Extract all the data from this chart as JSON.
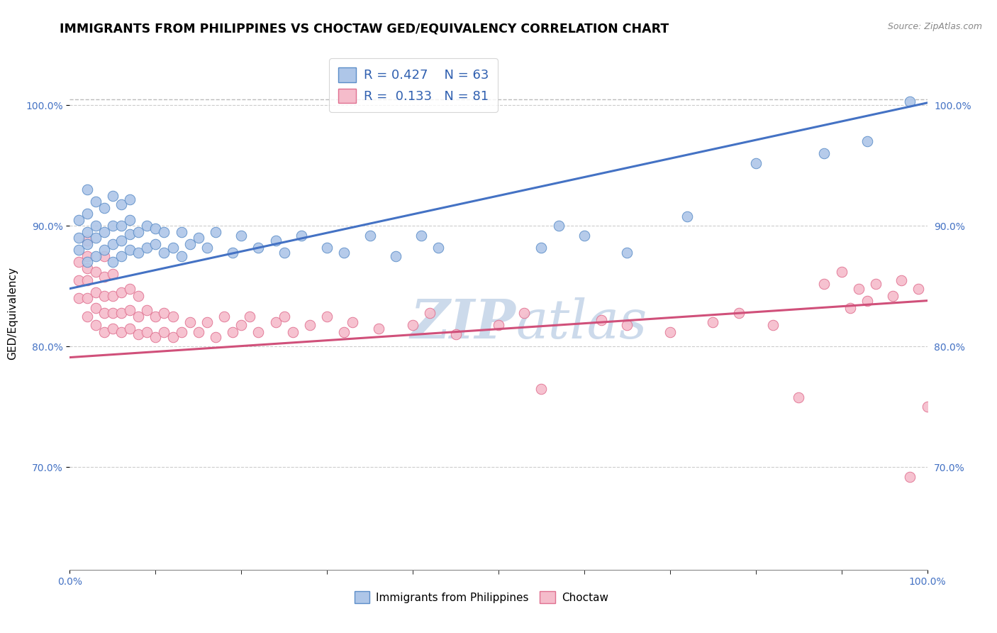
{
  "title": "IMMIGRANTS FROM PHILIPPINES VS CHOCTAW GED/EQUIVALENCY CORRELATION CHART",
  "source_text": "Source: ZipAtlas.com",
  "ylabel": "GED/Equivalency",
  "xlim": [
    0.0,
    1.0
  ],
  "ylim": [
    0.615,
    1.04
  ],
  "y_tick_positions": [
    0.7,
    0.8,
    0.9,
    1.0
  ],
  "blue_R": 0.427,
  "blue_N": 63,
  "pink_R": 0.133,
  "pink_N": 81,
  "blue_color": "#aec6e8",
  "pink_color": "#f5bccb",
  "blue_edge_color": "#5b8dc8",
  "pink_edge_color": "#e07090",
  "blue_line_color": "#4472c4",
  "pink_line_color": "#d0507a",
  "watermark_color": "#ccdaeb",
  "dashed_line_y": 1.005,
  "blue_line_y_start": 0.848,
  "blue_line_y_end": 1.002,
  "pink_line_y_start": 0.791,
  "pink_line_y_end": 0.838,
  "title_fontsize": 12.5,
  "axis_label_fontsize": 11,
  "tick_fontsize": 10,
  "legend_fontsize": 13,
  "blue_scatter_x": [
    0.01,
    0.01,
    0.01,
    0.02,
    0.02,
    0.02,
    0.02,
    0.02,
    0.03,
    0.03,
    0.03,
    0.03,
    0.04,
    0.04,
    0.04,
    0.05,
    0.05,
    0.05,
    0.05,
    0.06,
    0.06,
    0.06,
    0.06,
    0.07,
    0.07,
    0.07,
    0.07,
    0.08,
    0.08,
    0.09,
    0.09,
    0.1,
    0.1,
    0.11,
    0.11,
    0.12,
    0.13,
    0.13,
    0.14,
    0.15,
    0.16,
    0.17,
    0.19,
    0.2,
    0.22,
    0.24,
    0.25,
    0.27,
    0.3,
    0.32,
    0.35,
    0.38,
    0.41,
    0.43,
    0.55,
    0.57,
    0.6,
    0.65,
    0.72,
    0.8,
    0.88,
    0.93,
    0.98
  ],
  "blue_scatter_y": [
    0.88,
    0.89,
    0.905,
    0.87,
    0.885,
    0.895,
    0.91,
    0.93,
    0.875,
    0.89,
    0.9,
    0.92,
    0.88,
    0.895,
    0.915,
    0.87,
    0.885,
    0.9,
    0.925,
    0.875,
    0.888,
    0.9,
    0.918,
    0.88,
    0.893,
    0.905,
    0.922,
    0.878,
    0.895,
    0.882,
    0.9,
    0.885,
    0.898,
    0.878,
    0.895,
    0.882,
    0.875,
    0.895,
    0.885,
    0.89,
    0.882,
    0.895,
    0.878,
    0.892,
    0.882,
    0.888,
    0.878,
    0.892,
    0.882,
    0.878,
    0.892,
    0.875,
    0.892,
    0.882,
    0.882,
    0.9,
    0.892,
    0.878,
    0.908,
    0.952,
    0.96,
    0.97,
    1.003
  ],
  "pink_scatter_x": [
    0.01,
    0.01,
    0.01,
    0.02,
    0.02,
    0.02,
    0.02,
    0.02,
    0.02,
    0.03,
    0.03,
    0.03,
    0.03,
    0.04,
    0.04,
    0.04,
    0.04,
    0.04,
    0.05,
    0.05,
    0.05,
    0.05,
    0.06,
    0.06,
    0.06,
    0.07,
    0.07,
    0.07,
    0.08,
    0.08,
    0.08,
    0.09,
    0.09,
    0.1,
    0.1,
    0.11,
    0.11,
    0.12,
    0.12,
    0.13,
    0.14,
    0.15,
    0.16,
    0.17,
    0.18,
    0.19,
    0.2,
    0.21,
    0.22,
    0.24,
    0.25,
    0.26,
    0.28,
    0.3,
    0.32,
    0.33,
    0.36,
    0.4,
    0.42,
    0.45,
    0.5,
    0.53,
    0.55,
    0.62,
    0.65,
    0.7,
    0.75,
    0.78,
    0.82,
    0.85,
    0.88,
    0.9,
    0.91,
    0.92,
    0.93,
    0.94,
    0.96,
    0.97,
    0.98,
    0.99,
    1.0
  ],
  "pink_scatter_y": [
    0.84,
    0.855,
    0.87,
    0.825,
    0.84,
    0.855,
    0.865,
    0.875,
    0.888,
    0.818,
    0.832,
    0.845,
    0.862,
    0.812,
    0.828,
    0.842,
    0.858,
    0.875,
    0.815,
    0.828,
    0.842,
    0.86,
    0.812,
    0.828,
    0.845,
    0.815,
    0.83,
    0.848,
    0.81,
    0.825,
    0.842,
    0.812,
    0.83,
    0.808,
    0.825,
    0.812,
    0.828,
    0.808,
    0.825,
    0.812,
    0.82,
    0.812,
    0.82,
    0.808,
    0.825,
    0.812,
    0.818,
    0.825,
    0.812,
    0.82,
    0.825,
    0.812,
    0.818,
    0.825,
    0.812,
    0.82,
    0.815,
    0.818,
    0.828,
    0.81,
    0.818,
    0.828,
    0.765,
    0.822,
    0.818,
    0.812,
    0.82,
    0.828,
    0.818,
    0.758,
    0.852,
    0.862,
    0.832,
    0.848,
    0.838,
    0.852,
    0.842,
    0.855,
    0.692,
    0.848,
    0.75
  ]
}
